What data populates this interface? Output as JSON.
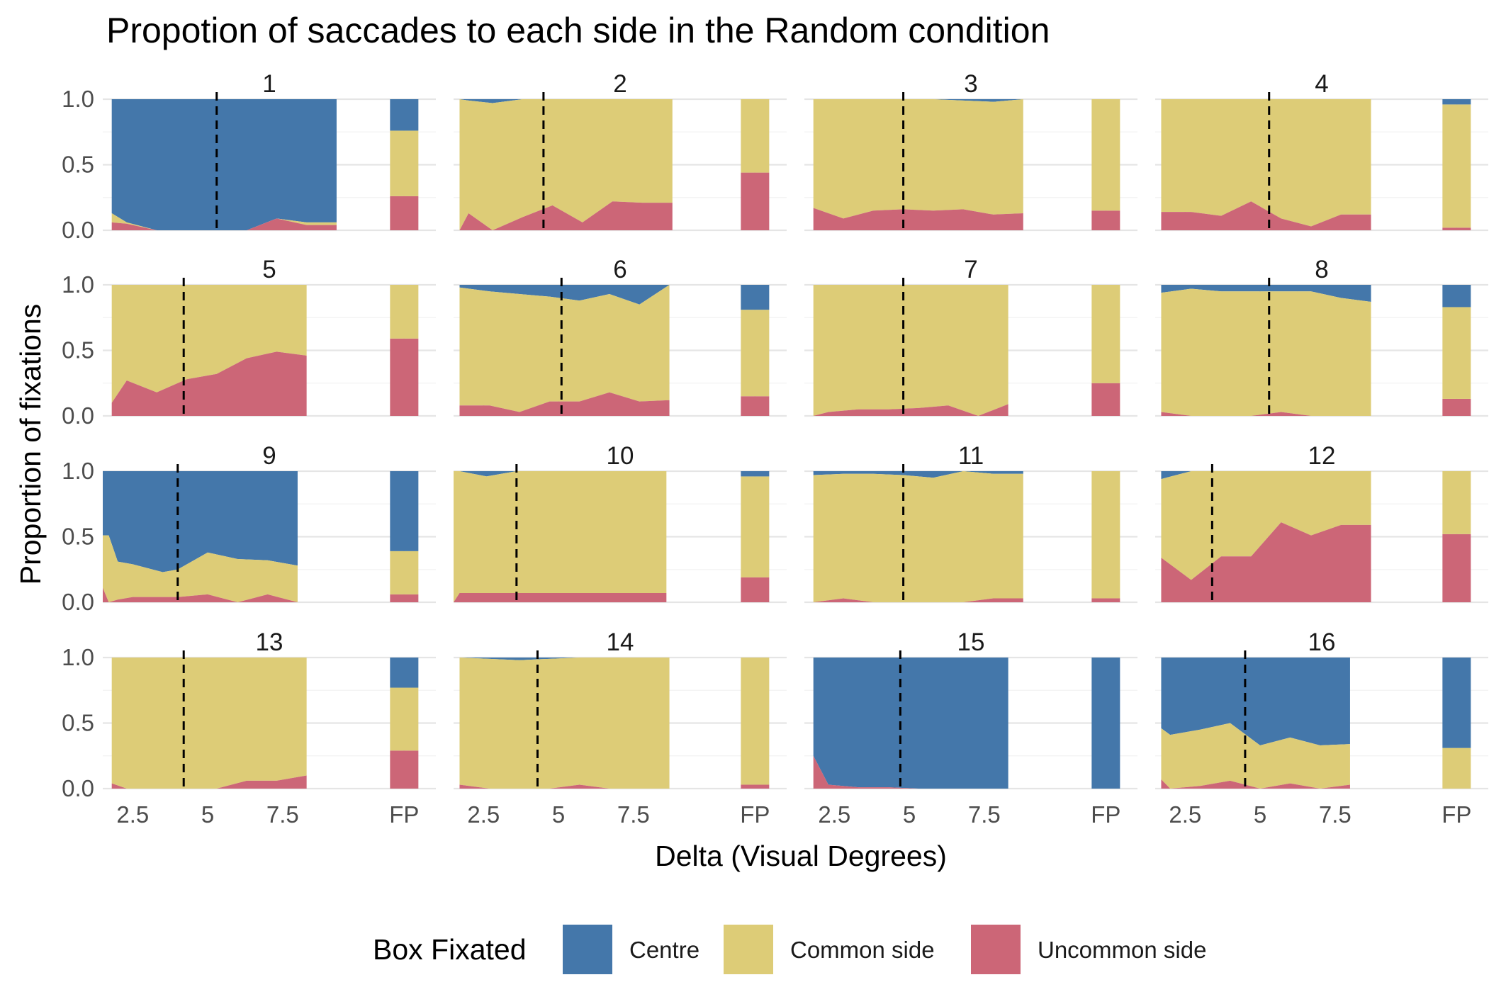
{
  "chart_data": {
    "type": "area",
    "title": "Propotion of saccades to each side in the Random condition",
    "xlabel": "Delta (Visual Degrees)",
    "ylabel": "Proportion of fixations",
    "ylim": [
      0,
      1
    ],
    "xlim": [
      1.5,
      9.5
    ],
    "x_ticks": [
      "2.5",
      "5",
      "7.5"
    ],
    "y_ticks": [
      "0.0",
      "0.5",
      "1.0"
    ],
    "fp_label": "FP",
    "legend": {
      "title": "Box Fixated",
      "position": "bottom",
      "items": [
        {
          "label": "Centre",
          "color": "#4477AA"
        },
        {
          "label": "Common side",
          "color": "#DDCC77"
        },
        {
          "label": "Uncommon side",
          "color": "#CC6677"
        }
      ]
    },
    "panels": [
      {
        "label": "1",
        "threshold": 5.3,
        "x": [
          1.8,
          2.3,
          3.3,
          4.3,
          5.3,
          6.3,
          7.3,
          8.3,
          9.3
        ],
        "uncommon": [
          0.06,
          0.05,
          0.0,
          0.0,
          0.0,
          0.0,
          0.09,
          0.04,
          0.04
        ],
        "centre": [
          0.87,
          0.94,
          1.0,
          1.0,
          1.0,
          1.0,
          0.91,
          0.94,
          0.94
        ],
        "fp": {
          "uncommon": 0.26,
          "common": 0.5,
          "centre": 0.24
        }
      },
      {
        "label": "2",
        "threshold": 4.5,
        "x": [
          1.7,
          2.0,
          2.8,
          3.8,
          4.8,
          5.8,
          6.8,
          7.8,
          8.8
        ],
        "uncommon": [
          0.0,
          0.13,
          0.0,
          0.1,
          0.19,
          0.06,
          0.22,
          0.21,
          0.21
        ],
        "centre": [
          0.0,
          0.01,
          0.03,
          0.0,
          0.0,
          0.0,
          0.0,
          0.0,
          0.0
        ],
        "fp": {
          "uncommon": 0.44,
          "common": 0.56,
          "centre": 0.0
        }
      },
      {
        "label": "3",
        "threshold": 4.8,
        "x": [
          1.8,
          2.8,
          3.8,
          4.8,
          5.8,
          6.8,
          7.8,
          8.8
        ],
        "uncommon": [
          0.17,
          0.09,
          0.15,
          0.16,
          0.15,
          0.16,
          0.12,
          0.13
        ],
        "centre": [
          0.0,
          0.0,
          0.0,
          0.0,
          0.0,
          0.01,
          0.02,
          0.0
        ],
        "fp": {
          "uncommon": 0.15,
          "common": 0.85,
          "centre": 0.0
        }
      },
      {
        "label": "4",
        "threshold": 5.3,
        "x": [
          1.7,
          2.7,
          3.7,
          4.7,
          5.7,
          6.7,
          7.7,
          8.7
        ],
        "uncommon": [
          0.14,
          0.14,
          0.11,
          0.22,
          0.09,
          0.03,
          0.12,
          0.12
        ],
        "centre": [
          0.0,
          0.0,
          0.0,
          0.0,
          0.0,
          0.0,
          0.0,
          0.0
        ],
        "fp": {
          "uncommon": 0.02,
          "common": 0.94,
          "centre": 0.04
        }
      },
      {
        "label": "5",
        "threshold": 4.2,
        "x": [
          1.8,
          2.3,
          3.3,
          4.3,
          5.3,
          6.3,
          7.3,
          8.3
        ],
        "uncommon": [
          0.1,
          0.27,
          0.18,
          0.28,
          0.32,
          0.44,
          0.49,
          0.46
        ],
        "centre": [
          0.0,
          0.0,
          0.0,
          0.0,
          0.0,
          0.0,
          0.0,
          0.0
        ],
        "fp": {
          "uncommon": 0.59,
          "common": 0.41,
          "centre": 0.0
        }
      },
      {
        "label": "6",
        "threshold": 5.1,
        "x": [
          1.7,
          2.7,
          3.7,
          4.7,
          5.7,
          6.7,
          7.7,
          8.7
        ],
        "uncommon": [
          0.08,
          0.08,
          0.03,
          0.11,
          0.11,
          0.18,
          0.11,
          0.12
        ],
        "centre": [
          0.02,
          0.05,
          0.07,
          0.09,
          0.12,
          0.07,
          0.15,
          0.0
        ],
        "fp": {
          "uncommon": 0.15,
          "common": 0.66,
          "centre": 0.19
        }
      },
      {
        "label": "7",
        "threshold": 4.8,
        "x": [
          1.8,
          2.3,
          3.3,
          4.3,
          5.3,
          6.3,
          7.3,
          8.3
        ],
        "uncommon": [
          0.0,
          0.03,
          0.05,
          0.05,
          0.06,
          0.08,
          0.0,
          0.09
        ],
        "centre": [
          0.0,
          0.0,
          0.0,
          0.0,
          0.0,
          0.0,
          0.0,
          0.0
        ],
        "fp": {
          "uncommon": 0.25,
          "common": 0.75,
          "centre": 0.0
        }
      },
      {
        "label": "8",
        "threshold": 5.3,
        "x": [
          1.7,
          2.7,
          3.7,
          4.7,
          5.7,
          6.7,
          7.7,
          8.7
        ],
        "uncommon": [
          0.03,
          0.0,
          0.0,
          0.0,
          0.03,
          0.0,
          0.0,
          0.0
        ],
        "centre": [
          0.06,
          0.03,
          0.05,
          0.05,
          0.05,
          0.05,
          0.1,
          0.13
        ],
        "fp": {
          "uncommon": 0.13,
          "common": 0.7,
          "centre": 0.17
        }
      },
      {
        "label": "9",
        "threshold": 4.0,
        "x": [
          1.5,
          1.7,
          2.0,
          2.5,
          3.5,
          4.0,
          5.0,
          6.0,
          7.0,
          8.0
        ],
        "uncommon": [
          0.11,
          0.0,
          0.02,
          0.04,
          0.04,
          0.04,
          0.06,
          0.0,
          0.06,
          0.0
        ],
        "centre": [
          0.49,
          0.49,
          0.69,
          0.71,
          0.77,
          0.75,
          0.62,
          0.67,
          0.68,
          0.72
        ],
        "fp": {
          "uncommon": 0.06,
          "common": 0.33,
          "centre": 0.61
        }
      },
      {
        "label": "10",
        "threshold": 3.6,
        "x": [
          1.5,
          1.7,
          2.6,
          3.6,
          4.6,
          5.6,
          6.6,
          7.6,
          8.6
        ],
        "uncommon": [
          0.0,
          0.07,
          0.07,
          0.07,
          0.07,
          0.07,
          0.07,
          0.07,
          0.07
        ],
        "centre": [
          0.0,
          0.0,
          0.04,
          0.0,
          0.0,
          0.0,
          0.0,
          0.0,
          0.0
        ],
        "fp": {
          "uncommon": 0.19,
          "common": 0.77,
          "centre": 0.04
        }
      },
      {
        "label": "11",
        "threshold": 4.8,
        "x": [
          1.8,
          2.8,
          3.8,
          4.8,
          5.8,
          6.8,
          7.8,
          8.8
        ],
        "uncommon": [
          0.0,
          0.03,
          0.0,
          0.0,
          0.0,
          0.0,
          0.03,
          0.03
        ],
        "centre": [
          0.03,
          0.02,
          0.02,
          0.03,
          0.05,
          0.0,
          0.02,
          0.02
        ],
        "fp": {
          "uncommon": 0.03,
          "common": 0.97,
          "centre": 0.0
        }
      },
      {
        "label": "12",
        "threshold": 3.4,
        "x": [
          1.7,
          2.7,
          3.7,
          4.7,
          5.7,
          6.7,
          7.7,
          8.7
        ],
        "uncommon": [
          0.34,
          0.17,
          0.35,
          0.35,
          0.61,
          0.51,
          0.59,
          0.59
        ],
        "centre": [
          0.06,
          0.0,
          0.0,
          0.0,
          0.0,
          0.0,
          0.0,
          0.0
        ],
        "fp": {
          "uncommon": 0.52,
          "common": 0.48,
          "centre": 0.0
        }
      },
      {
        "label": "13",
        "threshold": 4.2,
        "x": [
          1.8,
          2.3,
          3.3,
          4.3,
          5.3,
          6.3,
          7.3,
          8.3
        ],
        "uncommon": [
          0.04,
          0.0,
          0.0,
          0.0,
          0.0,
          0.06,
          0.06,
          0.1
        ],
        "centre": [
          0.0,
          0.0,
          0.0,
          0.0,
          0.0,
          0.0,
          0.0,
          0.0
        ],
        "fp": {
          "uncommon": 0.29,
          "common": 0.48,
          "centre": 0.23
        }
      },
      {
        "label": "14",
        "threshold": 4.3,
        "x": [
          1.7,
          2.7,
          3.7,
          4.7,
          5.7,
          6.7,
          7.7,
          8.7
        ],
        "uncommon": [
          0.03,
          0.0,
          0.0,
          0.0,
          0.03,
          0.0,
          0.0,
          0.0
        ],
        "centre": [
          0.0,
          0.01,
          0.02,
          0.01,
          0.0,
          0.0,
          0.0,
          0.0
        ],
        "fp": {
          "uncommon": 0.03,
          "common": 0.97,
          "centre": 0.0
        }
      },
      {
        "label": "15",
        "threshold": 4.7,
        "x": [
          1.8,
          2.3,
          3.3,
          4.3,
          5.3,
          6.3,
          7.3,
          8.3
        ],
        "uncommon": [
          0.25,
          0.03,
          0.01,
          0.01,
          0.0,
          0.0,
          0.0,
          0.0
        ],
        "centre": [
          0.75,
          0.97,
          0.99,
          0.99,
          1.0,
          1.0,
          1.0,
          1.0
        ],
        "fp": {
          "uncommon": 0.0,
          "common": 0.0,
          "centre": 1.0
        }
      },
      {
        "label": "16",
        "threshold": 4.5,
        "x": [
          1.7,
          2.0,
          3.0,
          4.0,
          5.0,
          6.0,
          7.0,
          8.0
        ],
        "uncommon": [
          0.07,
          0.0,
          0.02,
          0.06,
          0.0,
          0.04,
          0.0,
          0.03
        ],
        "centre": [
          0.54,
          0.59,
          0.55,
          0.5,
          0.67,
          0.61,
          0.67,
          0.66
        ],
        "fp": {
          "uncommon": 0.0,
          "common": 0.31,
          "centre": 0.69
        }
      }
    ]
  }
}
